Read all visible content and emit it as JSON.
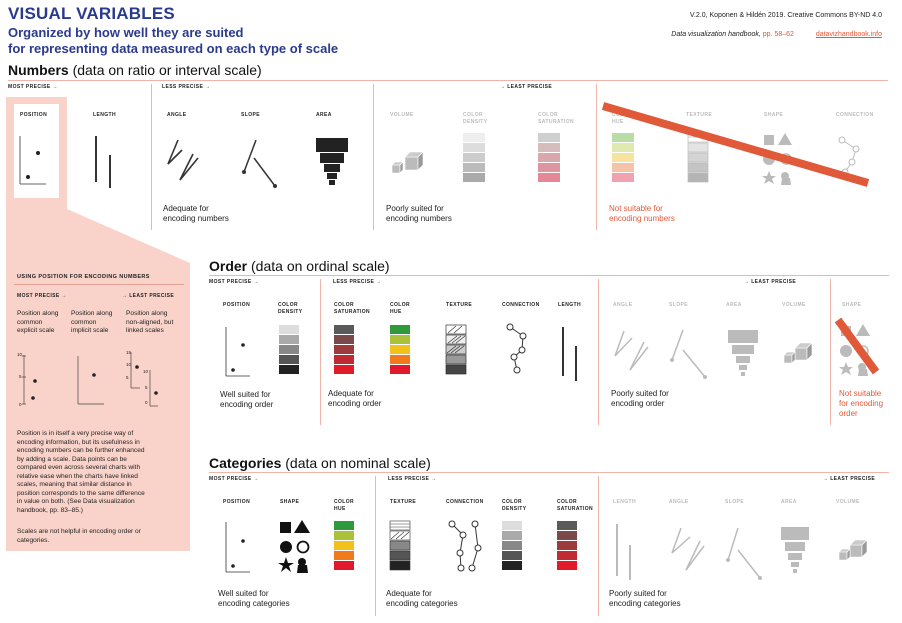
{
  "header": {
    "title": "VISUAL VARIABLES",
    "subtitle_line1": "Organized by how well they are suited",
    "subtitle_line2": "for representing data measured on each type of scale",
    "version": "V.2.0, Koponen & Hildén 2019. Creative Commons BY-ND 4.0",
    "handbook_label": "Data visualization handbook,",
    "handbook_pages": "pp. 58–62",
    "site": "datavizhandbook.info"
  },
  "numbers": {
    "heading_bold": "Numbers",
    "heading_rest": " (data on ratio or interval scale)",
    "most_precise": "MOST PRECISE →",
    "less_precise": "LESS PRECISE →",
    "least_precise": "→ LEAST PRECISE",
    "labels": [
      "POSITION",
      "LENGTH",
      "ANGLE",
      "SLOPE",
      "AREA",
      "VOLUME",
      "COLOR DENSITY",
      "COLOR SATURATION",
      "COLOR HUE",
      "TEXTURE",
      "SHAPE",
      "CONNECTION"
    ],
    "caption_adequate": [
      "Adequate for",
      "encoding numbers"
    ],
    "caption_poor": [
      "Poorly suited for",
      "encoding numbers"
    ],
    "caption_not": [
      "Not suitable for",
      "encoding numbers"
    ]
  },
  "position_box": {
    "title": "USING POSITION FOR ENCODING NUMBERS",
    "most_precise": "MOST PRECISE →",
    "least_precise": "→ LEAST PRECISE",
    "col1": [
      "Position along",
      "common",
      "explicit scale"
    ],
    "col2": [
      "Position along",
      "common",
      "implicit scale"
    ],
    "col3": [
      "Position along",
      "non-aligned, but",
      "linked scales"
    ],
    "ticks_a": [
      "10",
      "5",
      "0"
    ],
    "ticks_b": [
      "10",
      "5",
      "0"
    ],
    "ticks_c": [
      "15",
      "10",
      "5"
    ],
    "para": [
      "Position is in itself a very precise way of",
      "encoding information, but its usefulness in",
      "encoding numbers can be further enhanced",
      "by adding a scale. Data points can be",
      "compared even across several charts with",
      "relative ease when the charts have linked",
      "scales, meaning that similar distance in",
      "position corresponds to the same difference",
      "in value on both. (See Data visualization",
      "handbook, pp. 83–85.)"
    ],
    "para2": [
      "Scales are not helpful in encoding order or",
      "categories."
    ]
  },
  "order": {
    "heading_bold": "Order",
    "heading_rest": " (data on ordinal scale)",
    "most_precise": "MOST PRECISE →",
    "less_precise": "LESS PRECISE →",
    "least_precise": "→ LEAST PRECISE",
    "labels": [
      "POSITION",
      "COLOR DENSITY",
      "COLOR SATURATION",
      "COLOR HUE",
      "TEXTURE",
      "CONNECTION",
      "LENGTH",
      "ANGLE",
      "SLOPE",
      "AREA",
      "VOLUME",
      "SHAPE"
    ],
    "caption_well": [
      "Well suited for",
      "encoding order"
    ],
    "caption_adequate": [
      "Adequate for",
      "encoding order"
    ],
    "caption_poor": [
      "Poorly suited for",
      "encoding order"
    ],
    "caption_not": [
      "Not suitable",
      "for encoding",
      "order"
    ]
  },
  "categories": {
    "heading_bold": "Categories",
    "heading_rest": " (data on nominal scale)",
    "most_precise": "MOST PRECISE →",
    "less_precise": "LESS PRECISE →",
    "least_precise": "→ LEAST PRECISE",
    "labels": [
      "POSITION",
      "SHAPE",
      "COLOR HUE",
      "TEXTURE",
      "CONNECTION",
      "COLOR DENSITY",
      "COLOR SATURATION",
      "LENGTH",
      "ANGLE",
      "SLOPE",
      "AREA",
      "VOLUME"
    ],
    "caption_well": [
      "Well suited for",
      "encoding categories"
    ],
    "caption_adequate": [
      "Adequate for",
      "encoding categories"
    ],
    "caption_poor": [
      "Poorly suited for",
      "encoding categories"
    ]
  },
  "colors": {
    "title": "#2a3a8c",
    "accent": "#e05a3a",
    "pink": "#f9d3c9",
    "rule": "#f0b5a8"
  }
}
